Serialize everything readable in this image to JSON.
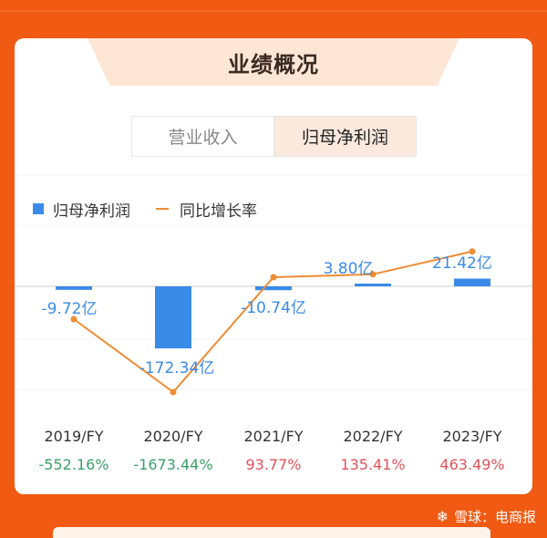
{
  "section_title": "业绩概况",
  "tabs": [
    {
      "label": "营业收入",
      "active": false
    },
    {
      "label": "归母净利润",
      "active": true
    }
  ],
  "legend": {
    "bar_series": "归母净利润",
    "line_series": "同比增长率"
  },
  "watermark": {
    "text": "雪球：电商报"
  },
  "colors": {
    "background": "#f05a12",
    "bar": "#3a8ae8",
    "line": "#ef8c34",
    "negative": "#3aa06a",
    "positive": "#e0525a"
  },
  "chart_data": {
    "type": "bar",
    "categories": [
      "2019/FY",
      "2020/FY",
      "2021/FY",
      "2022/FY",
      "2023/FY"
    ],
    "series": [
      {
        "name": "归母净利润",
        "values": [
          -9.72,
          -172.34,
          -10.74,
          3.8,
          21.42
        ],
        "labels": [
          "-9.72亿",
          "-172.34亿",
          "-10.74亿",
          "3.80亿",
          "21.42亿"
        ]
      },
      {
        "name": "同比增长率",
        "type": "line",
        "values": [
          -552.16,
          -1673.44,
          93.77,
          135.41,
          463.49
        ],
        "labels": [
          "-552.16%",
          "-1673.44%",
          "93.77%",
          "135.41%",
          "463.49%"
        ]
      }
    ]
  }
}
